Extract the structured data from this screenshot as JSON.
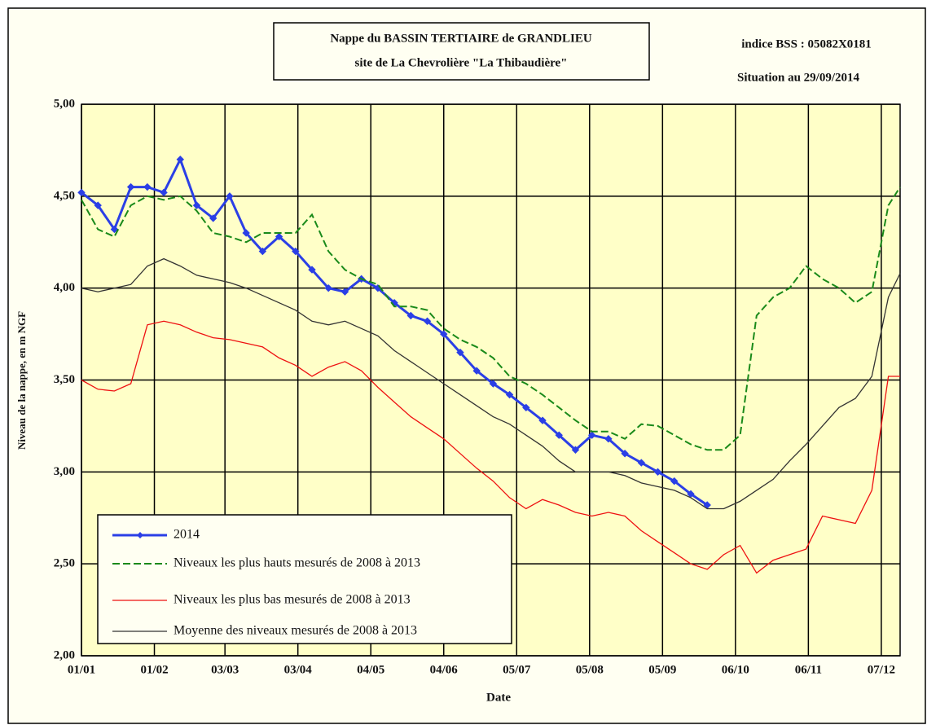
{
  "chart_data": {
    "type": "line",
    "title": "Nappe du BASSIN TERTIAIRE de GRANDLIEU",
    "subtitle": "site de La Chevrolière \"La Thibaudière\"",
    "annotations": [
      "indice BSS : 05082X0181",
      "Situation au 29/09/2014"
    ],
    "x_label": "Date",
    "y_label": "Niveau de la nappe, en m NGF",
    "x": [
      0,
      7,
      14,
      21,
      28,
      35,
      42,
      49,
      56,
      63,
      70,
      77,
      84,
      91,
      98,
      105,
      112,
      119,
      126,
      133,
      140,
      147,
      154,
      161,
      168,
      175,
      182,
      189,
      196,
      203,
      210,
      217,
      224,
      231,
      238,
      245,
      252,
      259,
      266,
      273,
      280,
      287,
      294,
      301,
      308,
      315,
      322,
      329,
      336,
      343,
      348
    ],
    "xlim": [
      0,
      348
    ],
    "xticks": [
      {
        "value": 0,
        "label": "01/01"
      },
      {
        "value": 31,
        "label": "01/02"
      },
      {
        "value": 61,
        "label": "03/03"
      },
      {
        "value": 92,
        "label": "03/04"
      },
      {
        "value": 123,
        "label": "04/05"
      },
      {
        "value": 154,
        "label": "04/06"
      },
      {
        "value": 185,
        "label": "05/07"
      },
      {
        "value": 216,
        "label": "05/08"
      },
      {
        "value": 247,
        "label": "05/09"
      },
      {
        "value": 278,
        "label": "06/10"
      },
      {
        "value": 309,
        "label": "06/11"
      },
      {
        "value": 340,
        "label": "07/12"
      }
    ],
    "ylim": [
      2,
      5
    ],
    "yticks": [
      {
        "value": 2,
        "label": "2,00"
      },
      {
        "value": 2.5,
        "label": "2,50"
      },
      {
        "value": 3,
        "label": "3,00"
      },
      {
        "value": 3.5,
        "label": "3,50"
      },
      {
        "value": 4,
        "label": "4,00"
      },
      {
        "value": 4.5,
        "label": "4,50"
      },
      {
        "value": 5,
        "label": "5,00"
      }
    ],
    "grid": true,
    "legend": "lower left",
    "series": [
      {
        "name": "2014",
        "color": "#2b3fe6",
        "line_style": "solid",
        "marker": "diamond",
        "values": [
          4.52,
          4.45,
          4.32,
          4.55,
          4.55,
          4.52,
          4.7,
          4.45,
          4.38,
          4.5,
          4.3,
          4.2,
          4.28,
          4.2,
          4.1,
          4.0,
          3.98,
          4.05,
          4.0,
          3.92,
          3.85,
          3.82,
          3.75,
          3.65,
          3.55,
          3.48,
          3.42,
          3.35,
          3.28,
          3.2,
          3.12,
          3.2,
          3.18,
          3.1,
          3.05,
          3.0,
          2.95,
          2.88,
          2.82,
          null,
          null,
          null,
          null,
          null,
          null,
          null,
          null,
          null,
          null,
          null,
          null
        ]
      },
      {
        "name": "Niveaux les plus hauts mesurés de 2008 à 2013",
        "color": "#1a8a1a",
        "line_style": "dashed",
        "values": [
          4.48,
          4.32,
          4.28,
          4.45,
          4.5,
          4.48,
          4.5,
          4.42,
          4.3,
          4.28,
          4.25,
          4.3,
          4.3,
          4.3,
          4.4,
          4.2,
          4.1,
          4.05,
          4.02,
          3.9,
          3.9,
          3.88,
          3.78,
          3.72,
          3.68,
          3.62,
          3.52,
          3.48,
          3.42,
          3.35,
          3.28,
          3.22,
          3.22,
          3.18,
          3.26,
          3.25,
          3.2,
          3.15,
          3.12,
          3.12,
          3.2,
          3.85,
          3.95,
          4.0,
          4.12,
          4.05,
          4.0,
          3.92,
          3.98,
          4.45,
          4.55
        ]
      },
      {
        "name": "Niveaux les plus bas mesurés de 2008 à 2013",
        "color": "#ee1111",
        "line_style": "solid",
        "values": [
          3.5,
          3.45,
          3.44,
          3.48,
          3.8,
          3.82,
          3.8,
          3.76,
          3.73,
          3.72,
          3.7,
          3.68,
          3.62,
          3.58,
          3.52,
          3.57,
          3.6,
          3.55,
          3.46,
          3.38,
          3.3,
          3.24,
          3.18,
          3.1,
          3.02,
          2.95,
          2.86,
          2.8,
          2.85,
          2.82,
          2.78,
          2.76,
          2.78,
          2.76,
          2.68,
          2.62,
          2.56,
          2.5,
          2.47,
          2.55,
          2.6,
          2.45,
          2.52,
          2.55,
          2.58,
          2.76,
          2.74,
          2.72,
          2.9,
          3.52,
          3.52
        ]
      },
      {
        "name": "Moyenne des niveaux mesurés de 2008 à 2013",
        "color": "#333333",
        "line_style": "solid",
        "values": [
          4.0,
          3.98,
          4.0,
          4.02,
          4.12,
          4.16,
          4.12,
          4.07,
          4.05,
          4.03,
          4.0,
          3.96,
          3.92,
          3.88,
          3.82,
          3.8,
          3.82,
          3.78,
          3.74,
          3.66,
          3.6,
          3.54,
          3.48,
          3.42,
          3.36,
          3.3,
          3.26,
          3.2,
          3.14,
          3.06,
          3.0,
          3.0,
          3.0,
          2.98,
          2.94,
          2.92,
          2.9,
          2.86,
          2.8,
          2.8,
          2.84,
          2.9,
          2.96,
          3.06,
          3.15,
          3.25,
          3.35,
          3.4,
          3.52,
          3.95,
          4.08
        ]
      }
    ]
  }
}
